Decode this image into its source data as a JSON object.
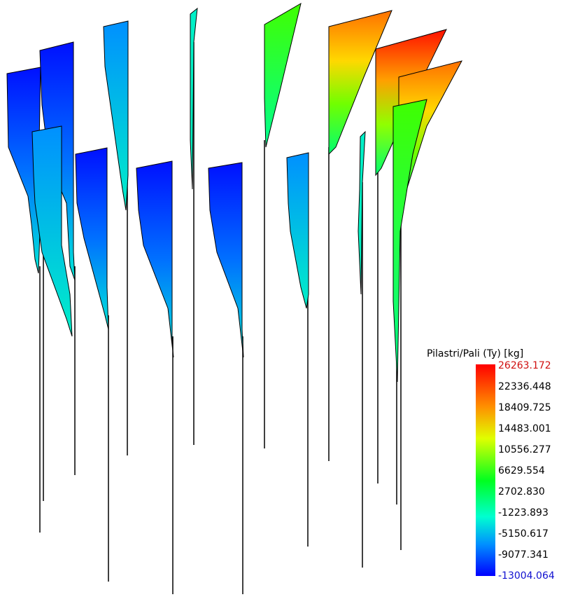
{
  "legend": {
    "title": "Pilastri/Pali (Ty) [kg]",
    "labels": [
      "26263.172",
      "22336.448",
      "18409.725",
      "14483.001",
      "10556.277",
      "6629.554",
      "2702.830",
      "-1223.893",
      "-5150.617",
      "-9077.341",
      "-13004.064"
    ]
  }
}
